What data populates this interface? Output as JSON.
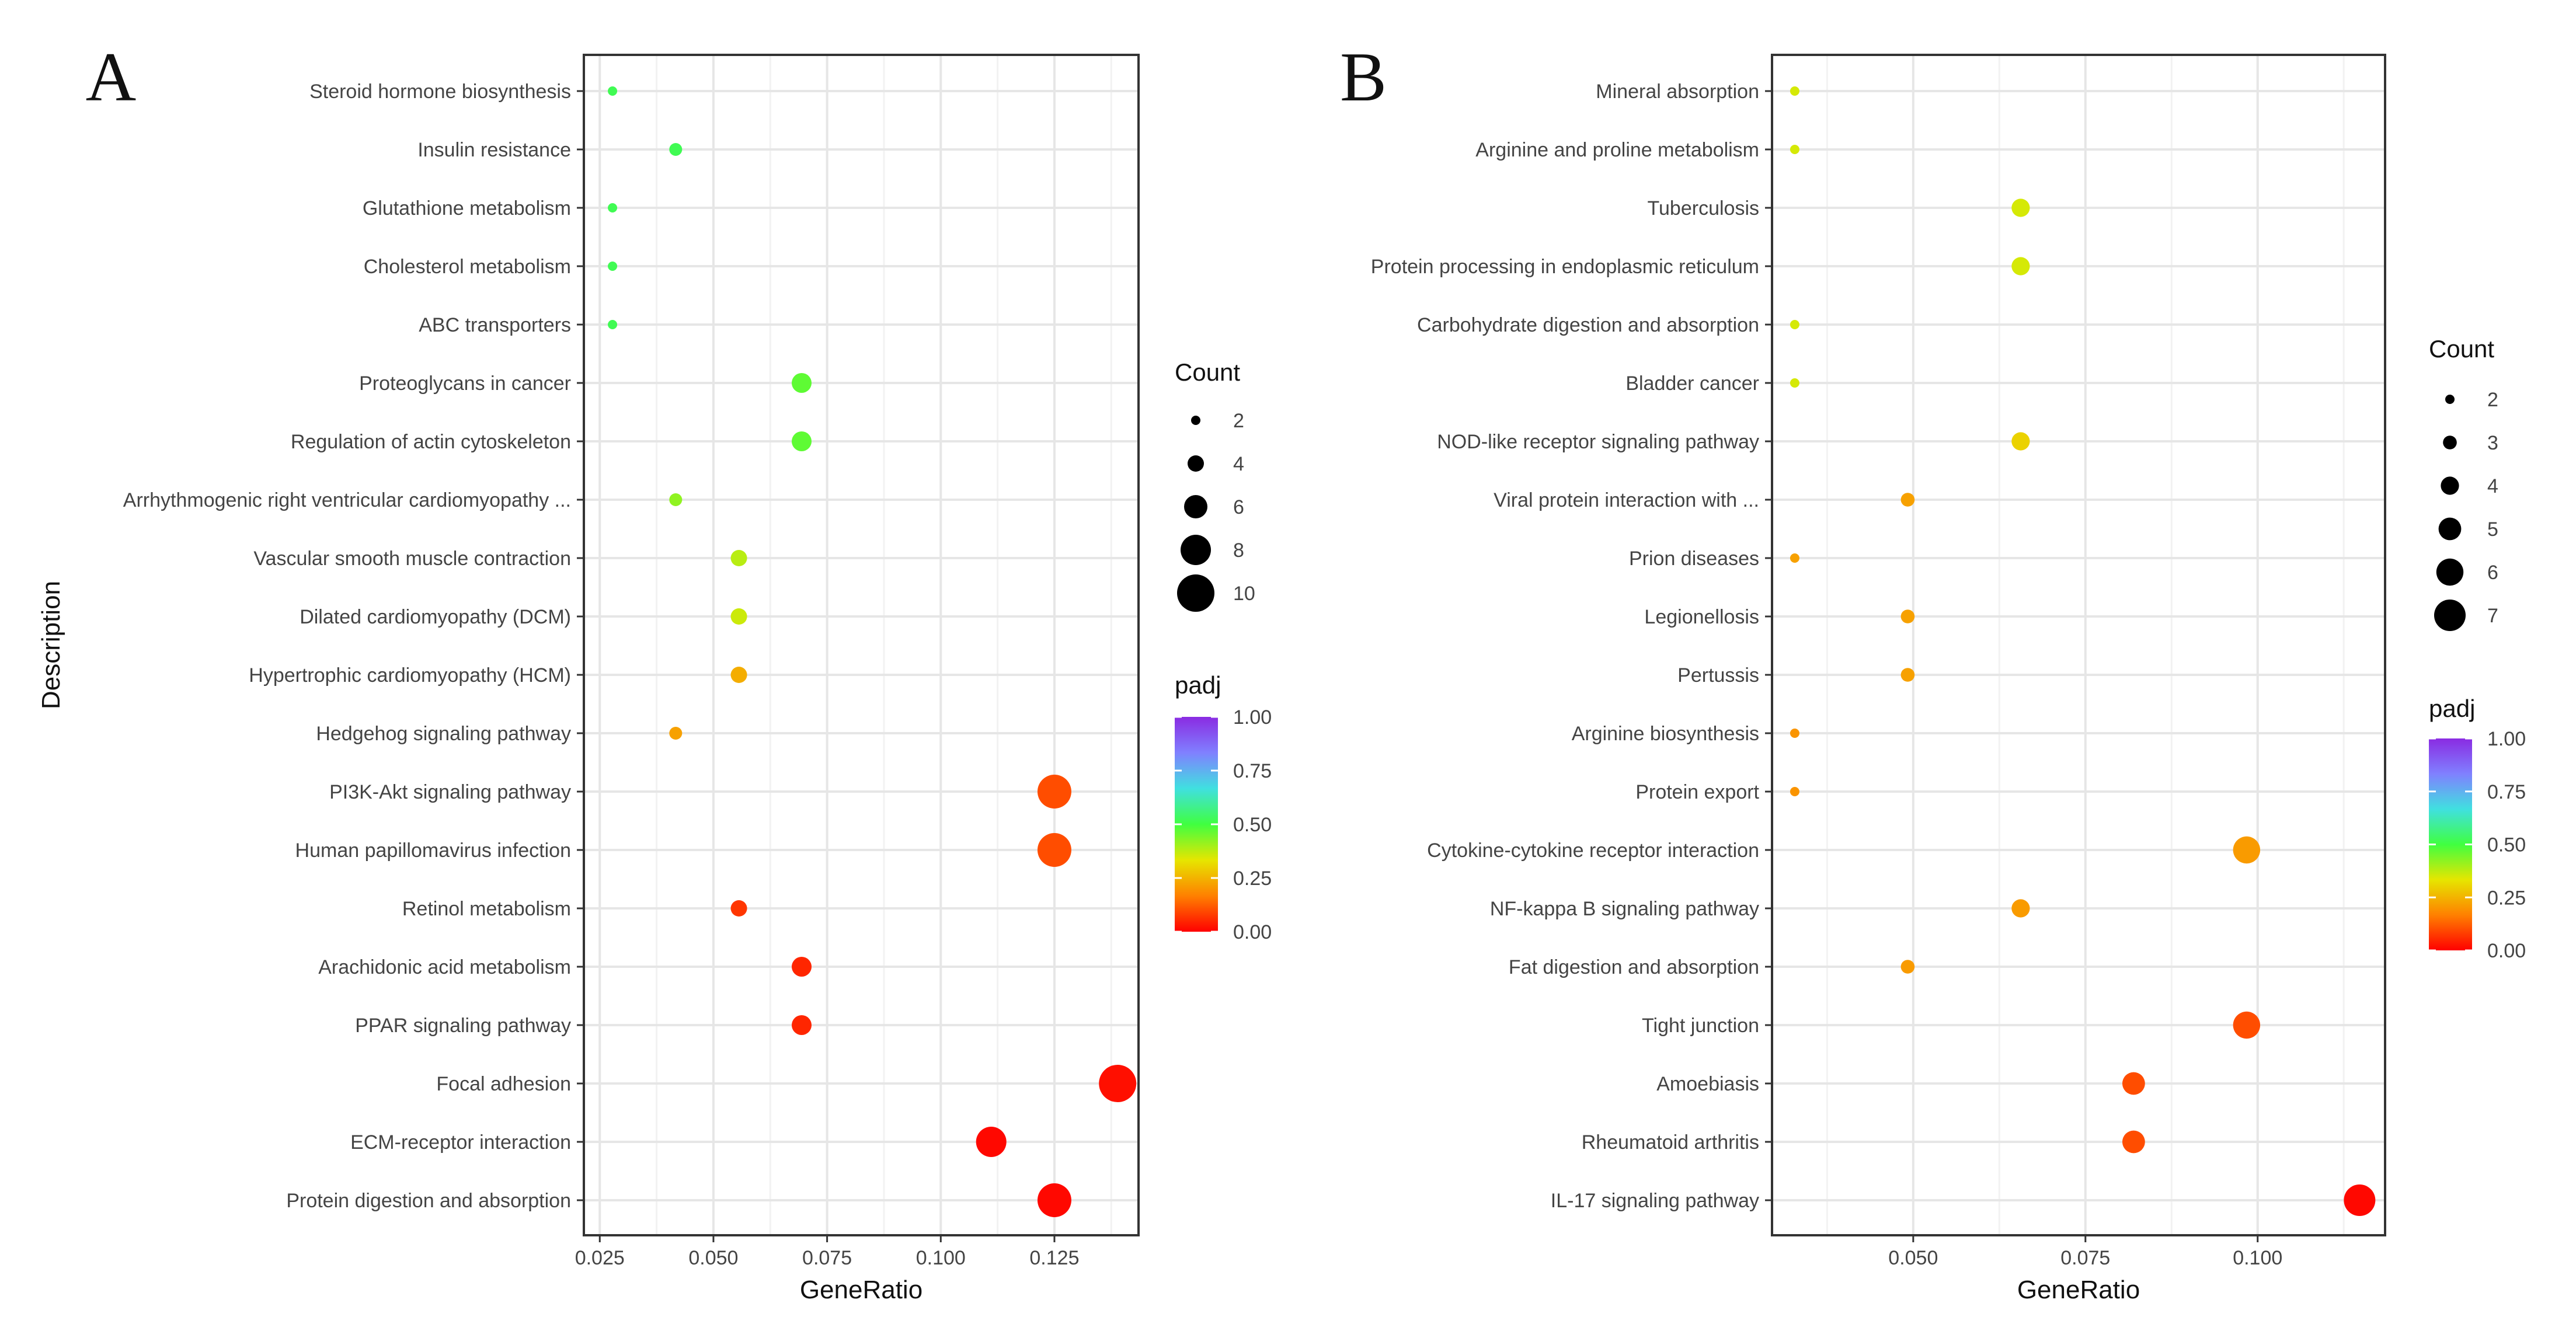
{
  "chart_data": [
    {
      "type": "scatter",
      "panel_label": "A",
      "xlabel": "GeneRatio",
      "ylabel": "Description",
      "xlim": [
        0.0215,
        0.1435
      ],
      "xticks": [
        0.025,
        0.05,
        0.075,
        0.1,
        0.125
      ],
      "xtick_labels": [
        "0.025",
        "0.050",
        "0.075",
        "0.100",
        "0.125"
      ],
      "grid": true,
      "categories": [
        "Steroid hormone biosynthesis",
        "Insulin resistance",
        "Glutathione metabolism",
        "Cholesterol metabolism",
        "ABC transporters",
        "Proteoglycans in cancer",
        "Regulation of actin cytoskeleton",
        "Arrhythmogenic right ventricular cardiomyopathy ...",
        "Vascular smooth muscle contraction",
        "Dilated cardiomyopathy (DCM)",
        "Hypertrophic cardiomyopathy (HCM)",
        "Hedgehog signaling pathway",
        "PI3K-Akt signaling pathway",
        "Human papillomavirus infection",
        "Retinol metabolism",
        "Arachidonic acid metabolism",
        "PPAR signaling pathway",
        "Focal adhesion",
        "ECM-receptor interaction",
        "Protein digestion and absorption"
      ],
      "points": [
        {
          "gene_ratio": 0.0278,
          "count": 2,
          "padj": 0.52
        },
        {
          "gene_ratio": 0.0417,
          "count": 3,
          "padj": 0.52
        },
        {
          "gene_ratio": 0.0278,
          "count": 2,
          "padj": 0.52
        },
        {
          "gene_ratio": 0.0278,
          "count": 2,
          "padj": 0.52
        },
        {
          "gene_ratio": 0.0278,
          "count": 2,
          "padj": 0.52
        },
        {
          "gene_ratio": 0.0694,
          "count": 5,
          "padj": 0.47
        },
        {
          "gene_ratio": 0.0694,
          "count": 5,
          "padj": 0.47
        },
        {
          "gene_ratio": 0.0417,
          "count": 3,
          "padj": 0.42
        },
        {
          "gene_ratio": 0.0556,
          "count": 4,
          "padj": 0.38
        },
        {
          "gene_ratio": 0.0556,
          "count": 4,
          "padj": 0.36
        },
        {
          "gene_ratio": 0.0556,
          "count": 4,
          "padj": 0.24
        },
        {
          "gene_ratio": 0.0417,
          "count": 3,
          "padj": 0.22
        },
        {
          "gene_ratio": 0.125,
          "count": 9,
          "padj": 0.1
        },
        {
          "gene_ratio": 0.125,
          "count": 9,
          "padj": 0.1
        },
        {
          "gene_ratio": 0.0556,
          "count": 4,
          "padj": 0.07
        },
        {
          "gene_ratio": 0.0694,
          "count": 5,
          "padj": 0.05
        },
        {
          "gene_ratio": 0.0694,
          "count": 5,
          "padj": 0.05
        },
        {
          "gene_ratio": 0.1389,
          "count": 10,
          "padj": 0.02
        },
        {
          "gene_ratio": 0.1111,
          "count": 8,
          "padj": 0.01
        },
        {
          "gene_ratio": 0.125,
          "count": 9,
          "padj": 0.01
        }
      ],
      "size_legend": {
        "title": "Count",
        "values": [
          2,
          4,
          6,
          8,
          10
        ],
        "labels": [
          "2",
          "4",
          "6",
          "8",
          "10"
        ]
      },
      "color_legend": {
        "title": "padj",
        "range": [
          0,
          1
        ],
        "ticks": [
          1,
          0.75,
          0.5,
          0.25,
          0
        ],
        "tick_labels": [
          "1.00",
          "0.75",
          "0.50",
          "0.25",
          "0.00"
        ]
      }
    },
    {
      "type": "scatter",
      "panel_label": "B",
      "xlabel": "GeneRatio",
      "ylabel": "",
      "xlim": [
        0.0295,
        0.1185
      ],
      "xticks": [
        0.05,
        0.075,
        0.1
      ],
      "xtick_labels": [
        "0.050",
        "0.075",
        "0.100"
      ],
      "grid": true,
      "categories": [
        "Mineral absorption",
        "Arginine and proline metabolism",
        "Tuberculosis",
        "Protein processing in endoplasmic reticulum",
        "Carbohydrate digestion and absorption",
        "Bladder cancer",
        "NOD-like receptor signaling pathway",
        "Viral protein interaction with ...",
        "Prion diseases",
        "Legionellosis",
        "Pertussis",
        "Arginine biosynthesis",
        "Protein export",
        "Cytokine-cytokine receptor interaction",
        "NF-kappa B signaling pathway",
        "Fat digestion and absorption",
        "Tight junction",
        "Amoebiasis",
        "Rheumatoid arthritis",
        "IL-17 signaling pathway"
      ],
      "points": [
        {
          "gene_ratio": 0.0328,
          "count": 2,
          "padj": 0.35
        },
        {
          "gene_ratio": 0.0328,
          "count": 2,
          "padj": 0.35
        },
        {
          "gene_ratio": 0.0656,
          "count": 4,
          "padj": 0.35
        },
        {
          "gene_ratio": 0.0656,
          "count": 4,
          "padj": 0.35
        },
        {
          "gene_ratio": 0.0328,
          "count": 2,
          "padj": 0.35
        },
        {
          "gene_ratio": 0.0328,
          "count": 2,
          "padj": 0.35
        },
        {
          "gene_ratio": 0.0656,
          "count": 4,
          "padj": 0.3
        },
        {
          "gene_ratio": 0.0492,
          "count": 3,
          "padj": 0.22
        },
        {
          "gene_ratio": 0.0328,
          "count": 2,
          "padj": 0.22
        },
        {
          "gene_ratio": 0.0492,
          "count": 3,
          "padj": 0.22
        },
        {
          "gene_ratio": 0.0492,
          "count": 3,
          "padj": 0.22
        },
        {
          "gene_ratio": 0.0328,
          "count": 2,
          "padj": 0.2
        },
        {
          "gene_ratio": 0.0328,
          "count": 2,
          "padj": 0.2
        },
        {
          "gene_ratio": 0.0984,
          "count": 6,
          "padj": 0.21
        },
        {
          "gene_ratio": 0.0656,
          "count": 4,
          "padj": 0.21
        },
        {
          "gene_ratio": 0.0492,
          "count": 3,
          "padj": 0.21
        },
        {
          "gene_ratio": 0.0984,
          "count": 6,
          "padj": 0.1
        },
        {
          "gene_ratio": 0.082,
          "count": 5,
          "padj": 0.1
        },
        {
          "gene_ratio": 0.082,
          "count": 5,
          "padj": 0.1
        },
        {
          "gene_ratio": 0.1148,
          "count": 7,
          "padj": 0.01
        }
      ],
      "size_legend": {
        "title": "Count",
        "values": [
          2,
          3,
          4,
          5,
          6,
          7
        ],
        "labels": [
          "2",
          "3",
          "4",
          "5",
          "6",
          "7"
        ]
      },
      "color_legend": {
        "title": "padj",
        "range": [
          0,
          1
        ],
        "ticks": [
          1,
          0.75,
          0.5,
          0.25,
          0
        ],
        "tick_labels": [
          "1.00",
          "0.75",
          "0.50",
          "0.25",
          "0.00"
        ]
      }
    }
  ],
  "colors": {
    "gradient_stops": [
      "#ff0000",
      "#ff8000",
      "#e6e600",
      "#40ff40",
      "#40e0e0",
      "#8080ff",
      "#8a2be2"
    ],
    "grid": "#e6e6e6",
    "frame": "#333333",
    "text": "#444444",
    "title_text": "#111111"
  }
}
